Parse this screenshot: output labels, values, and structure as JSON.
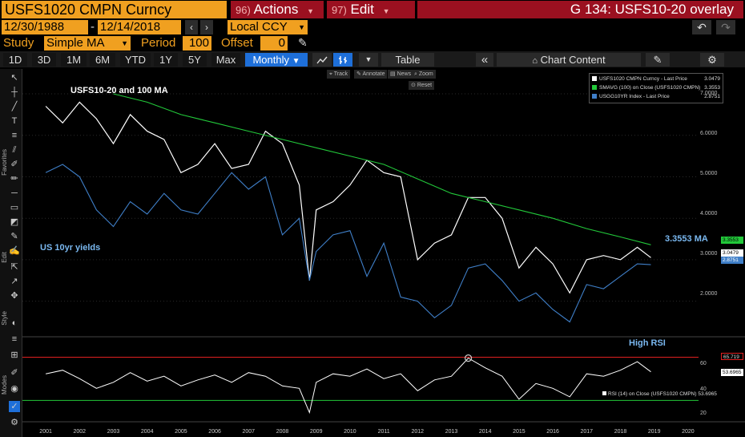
{
  "titlebar": {
    "ticker": "USFS1020 CMPN Curncy",
    "actions_num": "96)",
    "actions_label": "Actions",
    "edit_num": "97)",
    "edit_label": "Edit",
    "page_title": "G 134: USFS10-20 overlay"
  },
  "range": {
    "start_date": "12/30/1988",
    "separator": "-",
    "end_date": "12/14/2018",
    "currency": "Local CCY"
  },
  "study": {
    "study_label": "Study",
    "study_value": "Simple MA",
    "period_label": "Period",
    "period_value": "100",
    "offset_label": "Offset",
    "offset_value": "0"
  },
  "toolbar": {
    "periods": [
      "1D",
      "3D",
      "1M",
      "6M",
      "YTD",
      "1Y",
      "5Y",
      "Max"
    ],
    "frequency": "Monthly",
    "table_label": "Table",
    "chart_content_label": "Chart Content"
  },
  "chart_tools": {
    "track": "Track",
    "annotate": "Annotate",
    "news": "News",
    "zoom": "Zoom",
    "reset": "Reset"
  },
  "side_labels": {
    "favorites": "Favorites",
    "edit": "Edit",
    "style": "Style",
    "modes": "Modes"
  },
  "colors": {
    "price": "#ffffff",
    "ma": "#22c83a",
    "yield": "#3f7fc8",
    "rsi": "#ffffff",
    "rsi_high": "#e02020",
    "rsi_low": "#22c83a",
    "accent_orange": "#f0a020",
    "header_red": "#9b1020"
  },
  "annotations": {
    "main_title": "USFS10-20 and 100 MA",
    "yields_label": "US 10yr yields",
    "ma_label": "3.3553 MA",
    "rsi_label": "High RSI"
  },
  "chart_data": [
    {
      "type": "line",
      "panel": "main",
      "x_unit": "year",
      "x_ticks": [
        "2001",
        "2002",
        "2003",
        "2004",
        "2005",
        "2006",
        "2007",
        "2008",
        "2009",
        "2010",
        "2011",
        "2012",
        "2013",
        "2014",
        "2015",
        "2016",
        "2017",
        "2018",
        "2019",
        "2020"
      ],
      "y_ticks": [
        "7.0000",
        "6.0000",
        "5.0000",
        "4.0000",
        "3.0000",
        "2.0000"
      ],
      "ylim": [
        1.2,
        7.6
      ],
      "legend": [
        {
          "label": "USFS1020 CMPN Curncy - Last Price",
          "value": "3.0479"
        },
        {
          "label": "SMAVG (100)  on Close (USFS1020 CMPN)",
          "value": "3.3553"
        },
        {
          "label": "USGG10YR Index - Last Price",
          "value": "2.8751"
        }
      ],
      "last_value_tags": [
        "3.3553",
        "3.0479",
        "2.8751"
      ],
      "series": [
        {
          "name": "USFS1020 CMPN Curncy - Last Price",
          "x": [
            2001.0,
            2001.5,
            2002.0,
            2002.5,
            2003.0,
            2003.5,
            2004.0,
            2004.5,
            2005.0,
            2005.5,
            2006.0,
            2006.5,
            2007.0,
            2007.5,
            2008.0,
            2008.5,
            2008.8,
            2009.0,
            2009.5,
            2010.0,
            2010.5,
            2011.0,
            2011.5,
            2012.0,
            2012.5,
            2013.0,
            2013.5,
            2014.0,
            2014.5,
            2015.0,
            2015.5,
            2016.0,
            2016.5,
            2017.0,
            2017.5,
            2018.0,
            2018.5,
            2018.9
          ],
          "values": [
            6.7,
            6.3,
            6.8,
            6.4,
            5.8,
            6.5,
            6.1,
            5.9,
            5.1,
            5.3,
            5.8,
            5.2,
            5.3,
            6.1,
            5.8,
            4.8,
            2.5,
            4.2,
            4.4,
            4.8,
            5.4,
            5.1,
            5.0,
            3.0,
            3.4,
            3.6,
            4.5,
            4.5,
            4.0,
            2.8,
            3.3,
            2.9,
            2.2,
            3.0,
            3.1,
            3.0,
            3.3,
            3.05
          ]
        },
        {
          "name": "SMAVG (100)  on Close (USFS1020 CMPN)",
          "x": [
            2003.0,
            2004.0,
            2005.0,
            2006.0,
            2007.0,
            2008.0,
            2009.0,
            2010.0,
            2011.0,
            2012.0,
            2013.0,
            2014.0,
            2015.0,
            2016.0,
            2017.0,
            2018.0,
            2018.9
          ],
          "values": [
            7.0,
            6.8,
            6.5,
            6.3,
            6.1,
            5.9,
            5.7,
            5.5,
            5.3,
            4.95,
            4.6,
            4.4,
            4.2,
            4.0,
            3.75,
            3.55,
            3.36
          ]
        },
        {
          "name": "USGG10YR Index - Last Price",
          "x": [
            2001.0,
            2001.5,
            2002.0,
            2002.5,
            2003.0,
            2003.5,
            2004.0,
            2004.5,
            2005.0,
            2005.5,
            2006.0,
            2006.5,
            2007.0,
            2007.5,
            2008.0,
            2008.5,
            2008.8,
            2009.0,
            2009.5,
            2010.0,
            2010.5,
            2011.0,
            2011.5,
            2012.0,
            2012.5,
            2013.0,
            2013.5,
            2014.0,
            2014.5,
            2015.0,
            2015.5,
            2016.0,
            2016.5,
            2017.0,
            2017.5,
            2018.0,
            2018.5,
            2018.9
          ],
          "values": [
            5.1,
            5.3,
            5.0,
            4.2,
            3.8,
            4.4,
            4.1,
            4.6,
            4.2,
            4.1,
            4.6,
            5.1,
            4.7,
            5.0,
            3.6,
            4.0,
            2.5,
            3.2,
            3.6,
            3.7,
            2.6,
            3.4,
            2.1,
            2.0,
            1.6,
            1.9,
            2.8,
            2.9,
            2.5,
            2.0,
            2.2,
            1.8,
            1.5,
            2.4,
            2.3,
            2.6,
            2.9,
            2.88
          ]
        }
      ]
    },
    {
      "type": "line",
      "panel": "rsi",
      "legend": "RSI (14)  on Close (USFS1020 CMPN) 53.6965",
      "y_ticks": [
        "60",
        "40",
        "20"
      ],
      "ylim": [
        15,
        80
      ],
      "levels": {
        "high": 65.719,
        "low": 30
      },
      "last_value_tags": [
        "65.719",
        "53.6965"
      ],
      "series": [
        {
          "name": "RSI (14)  on Close (USFS1020 CMPN)",
          "x": [
            2001.0,
            2001.5,
            2002.0,
            2002.5,
            2003.0,
            2003.5,
            2004.0,
            2004.5,
            2005.0,
            2005.5,
            2006.0,
            2006.5,
            2007.0,
            2007.5,
            2008.0,
            2008.5,
            2008.8,
            2009.0,
            2009.5,
            2010.0,
            2010.5,
            2011.0,
            2011.5,
            2012.0,
            2012.5,
            2013.0,
            2013.5,
            2014.0,
            2014.5,
            2015.0,
            2015.5,
            2016.0,
            2016.5,
            2017.0,
            2017.5,
            2018.0,
            2018.5,
            2018.9
          ],
          "values": [
            52,
            55,
            48,
            40,
            45,
            53,
            46,
            50,
            42,
            47,
            51,
            45,
            53,
            50,
            42,
            40,
            20,
            45,
            52,
            50,
            56,
            48,
            52,
            38,
            47,
            50,
            65,
            57,
            50,
            31,
            44,
            40,
            33,
            52,
            50,
            55,
            62,
            53.7
          ]
        }
      ]
    }
  ]
}
